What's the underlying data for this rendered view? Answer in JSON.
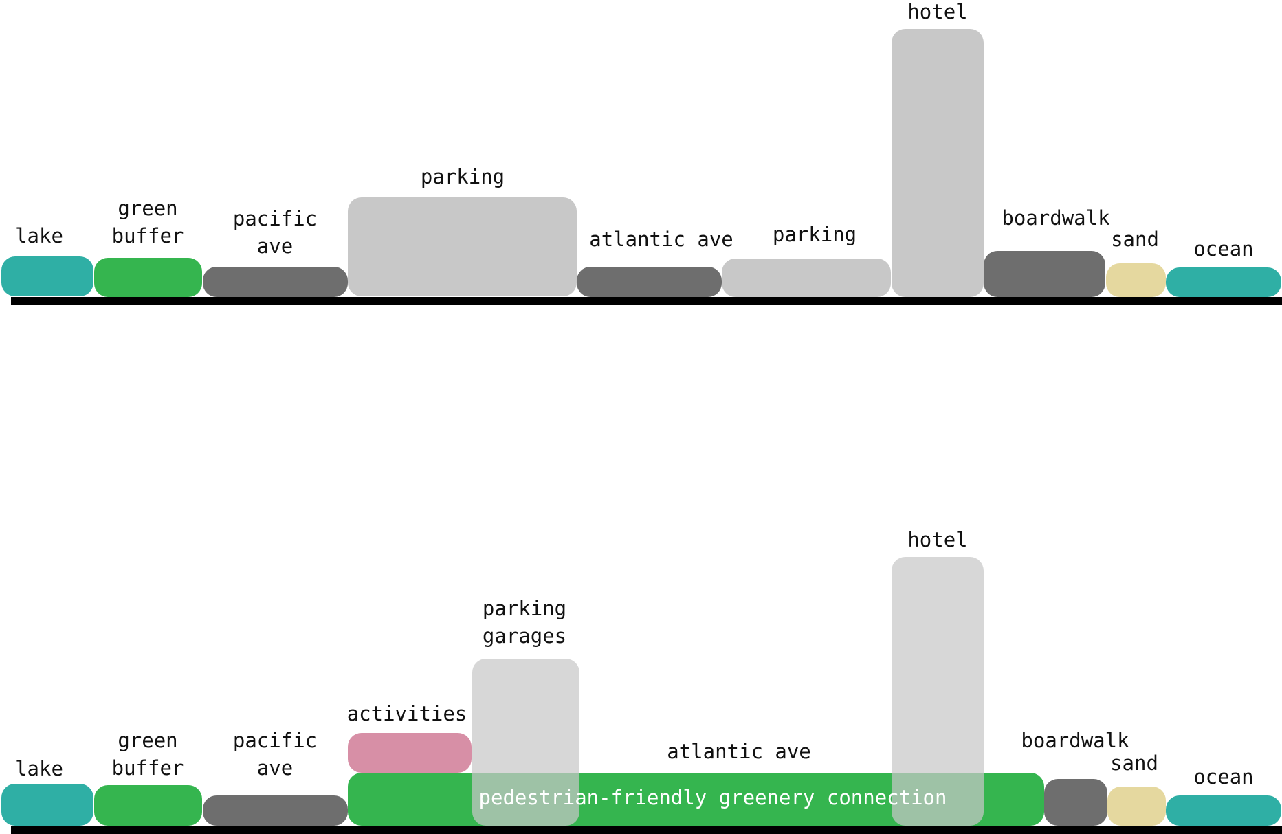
{
  "colors": {
    "water": "#2FAFA5",
    "green": "#35B54F",
    "road": "#6E6E6E",
    "building": "#C8C8C8",
    "sand": "#E5D89F",
    "activities": "#D78FA6",
    "ground": "#000000",
    "overlay": "#C8C8C8"
  },
  "top_section": {
    "segments": [
      {
        "key": "lake",
        "lines": [
          "lake"
        ],
        "type": "water"
      },
      {
        "key": "green-buffer",
        "lines": [
          "green",
          "buffer"
        ],
        "type": "green"
      },
      {
        "key": "pacific-ave",
        "lines": [
          "pacific",
          "ave"
        ],
        "type": "road"
      },
      {
        "key": "parking",
        "lines": [
          "parking"
        ],
        "type": "building"
      },
      {
        "key": "atlantic-ave",
        "lines": [
          "atlantic ave"
        ],
        "type": "road"
      },
      {
        "key": "parking-2",
        "lines": [
          "parking"
        ],
        "type": "building"
      },
      {
        "key": "hotel",
        "lines": [
          "hotel"
        ],
        "type": "building"
      },
      {
        "key": "boardwalk",
        "lines": [
          "boardwalk"
        ],
        "type": "road"
      },
      {
        "key": "sand",
        "lines": [
          "sand"
        ],
        "type": "sand"
      },
      {
        "key": "ocean",
        "lines": [
          "ocean"
        ],
        "type": "water"
      }
    ]
  },
  "bottom_section": {
    "segments": [
      {
        "key": "lake",
        "lines": [
          "lake"
        ],
        "type": "water"
      },
      {
        "key": "green-buffer",
        "lines": [
          "green",
          "buffer"
        ],
        "type": "green"
      },
      {
        "key": "pacific-ave",
        "lines": [
          "pacific",
          "ave"
        ],
        "type": "road"
      },
      {
        "key": "activities",
        "lines": [
          "activities"
        ],
        "type": "activities"
      },
      {
        "key": "greenery-connection",
        "lines": [
          "pedestrian-friendly greenery connection"
        ],
        "type": "green"
      },
      {
        "key": "parking-garages",
        "lines": [
          "parking",
          "garages"
        ],
        "type": "overlay"
      },
      {
        "key": "atlantic-ave",
        "lines": [
          "atlantic ave"
        ],
        "type": "none"
      },
      {
        "key": "hotel",
        "lines": [
          "hotel"
        ],
        "type": "overlay"
      },
      {
        "key": "boardwalk",
        "lines": [
          "boardwalk"
        ],
        "type": "road"
      },
      {
        "key": "sand",
        "lines": [
          "sand"
        ],
        "type": "sand"
      },
      {
        "key": "ocean",
        "lines": [
          "ocean"
        ],
        "type": "water"
      }
    ]
  }
}
